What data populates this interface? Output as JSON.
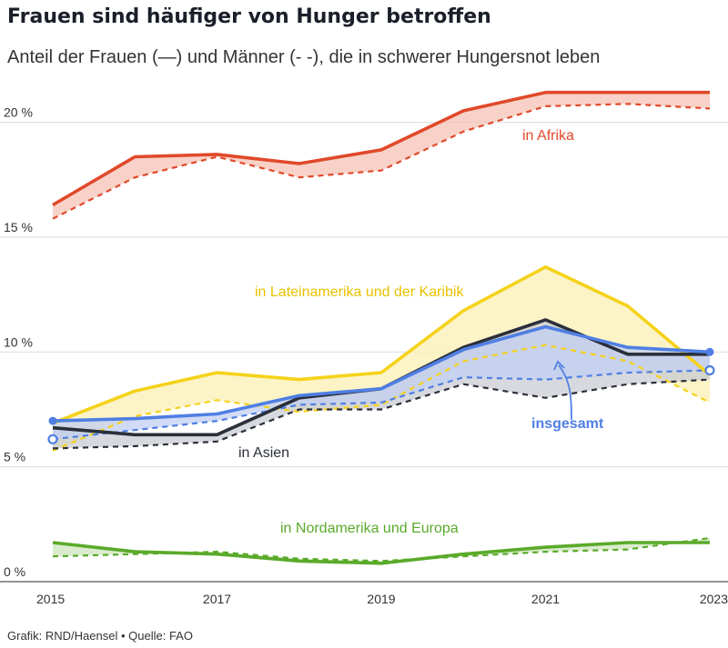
{
  "header": {
    "title": "Frauen sind häufiger von Hunger betroffen",
    "subtitle": "Anteil der Frauen (—) und Männer (- -), die in schwerer Hungersnot leben"
  },
  "footer": {
    "credit": "Grafik: RND/Haensel • Quelle: FAO"
  },
  "chart_data": {
    "type": "line",
    "x": [
      2015,
      2016,
      2017,
      2018,
      2019,
      2020,
      2021,
      2022,
      2023
    ],
    "xticks": [
      "2015",
      "2017",
      "2019",
      "2021",
      "2023"
    ],
    "ylim": [
      0,
      22
    ],
    "yticks": [
      0,
      5,
      10,
      15,
      20
    ],
    "ytick_labels": [
      "0 %",
      "5 %",
      "10 %",
      "15 %",
      "20 %"
    ],
    "grid": true,
    "series": [
      {
        "key": "afrika",
        "name": "in Afrika",
        "color": "#e0492a",
        "fill": "#f6c3b6",
        "women": [
          16.4,
          18.5,
          18.6,
          18.2,
          18.8,
          20.5,
          21.3,
          21.3,
          21.3
        ],
        "men": [
          15.8,
          17.6,
          18.5,
          17.6,
          17.9,
          19.6,
          20.7,
          20.8,
          20.6
        ]
      },
      {
        "key": "lateinamerika",
        "name": "in Lateinamerika und der Karibik",
        "color": "#f5d21a",
        "fill": "#fbf0b4",
        "women": [
          6.9,
          8.3,
          9.1,
          8.8,
          9.1,
          11.8,
          13.7,
          12.0,
          9.0
        ],
        "men": [
          5.7,
          7.2,
          7.9,
          7.4,
          7.7,
          9.6,
          10.3,
          9.6,
          7.8
        ]
      },
      {
        "key": "asien",
        "name": "in Asien",
        "color": "#2b2f3a",
        "fill": "#c9ccd3",
        "women": [
          6.7,
          6.4,
          6.4,
          8.0,
          8.4,
          10.2,
          11.4,
          9.9,
          9.9
        ],
        "men": [
          5.8,
          5.9,
          6.1,
          7.5,
          7.5,
          8.6,
          8.0,
          8.6,
          8.8
        ]
      },
      {
        "key": "insgesamt",
        "name": "insgesamt",
        "color": "#4f7fe3",
        "fill": "#c2cff3",
        "women": [
          7.0,
          7.1,
          7.3,
          8.1,
          8.4,
          10.1,
          11.1,
          10.2,
          10.0
        ],
        "men": [
          6.2,
          6.6,
          7.0,
          7.7,
          7.8,
          8.9,
          8.8,
          9.1,
          9.2
        ]
      },
      {
        "key": "nordamerika",
        "name": "in Nordamerika und Europa",
        "color": "#5aaa2a",
        "fill": "#cfe6bd",
        "women": [
          1.7,
          1.3,
          1.2,
          0.9,
          0.8,
          1.2,
          1.5,
          1.7,
          1.7
        ],
        "men": [
          1.1,
          1.2,
          1.3,
          1.0,
          0.9,
          1.1,
          1.3,
          1.4,
          1.9
        ]
      }
    ]
  }
}
